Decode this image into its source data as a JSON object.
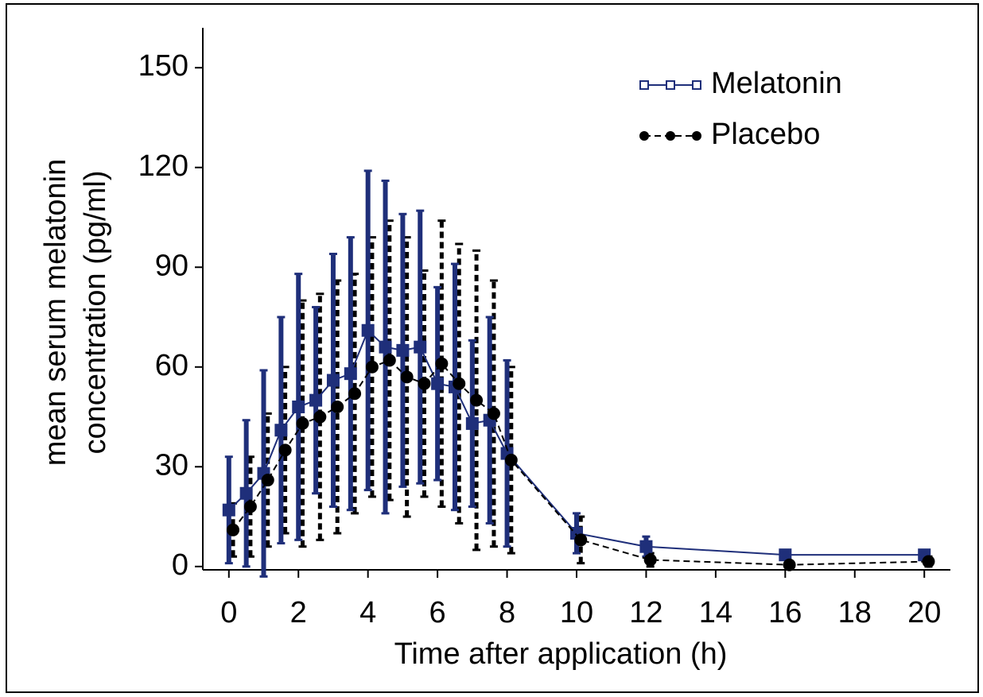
{
  "chart_data": {
    "type": "line",
    "xlabel": "Time after application (h)",
    "ylabel": [
      "mean serum melatonin",
      "concentration (pg/ml)"
    ],
    "xlim": [
      -0.75,
      20.75
    ],
    "ylim": [
      -1,
      162
    ],
    "xticks": [
      0,
      2,
      4,
      6,
      8,
      10,
      12,
      14,
      16,
      18,
      20
    ],
    "yticks": [
      0,
      30,
      60,
      90,
      120,
      150
    ],
    "legend": "top-right",
    "x": [
      0,
      0.5,
      1,
      1.5,
      2,
      2.5,
      3,
      3.5,
      4,
      4.5,
      5,
      5.5,
      6,
      6.5,
      7,
      7.5,
      8,
      10,
      12,
      16,
      20
    ],
    "series": [
      {
        "name": "Melatonin",
        "color": "#1f2f7a",
        "marker": "square",
        "dash": "solid",
        "values": [
          17,
          22,
          28,
          41,
          48,
          50,
          56,
          58,
          71,
          66,
          65,
          66,
          55,
          54,
          43,
          44,
          34,
          10,
          6,
          3.5,
          3.5
        ],
        "errors": [
          16,
          22,
          31,
          34,
          40,
          28,
          38,
          41,
          48,
          50,
          41,
          41,
          29,
          37,
          25,
          31,
          28,
          6,
          3,
          1,
          1
        ]
      },
      {
        "name": "Placebo",
        "color": "#000000",
        "marker": "circle",
        "dash": "dashed",
        "values": [
          11,
          18,
          26,
          35,
          43,
          45,
          48,
          52,
          60,
          62,
          57,
          55,
          61,
          55,
          50,
          46,
          32,
          8,
          2,
          0.5,
          1.5
        ],
        "errors": [
          8,
          15,
          20,
          25,
          37,
          37,
          38,
          36,
          39,
          42,
          42,
          34,
          43,
          42,
          45,
          40,
          28,
          7,
          2,
          0.5,
          1.5
        ]
      }
    ]
  }
}
